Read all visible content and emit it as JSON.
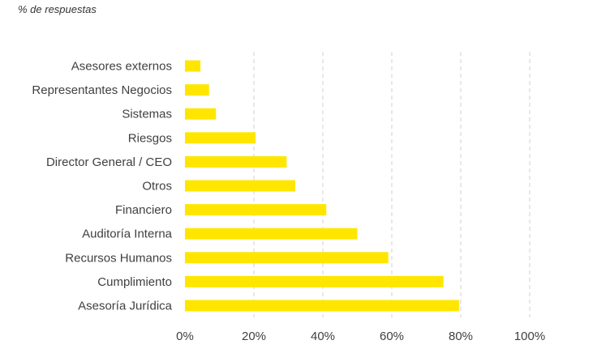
{
  "subtitle": "% de respuestas",
  "colors": {
    "bar": "#FFE600",
    "grid": "#d0d0d0",
    "text": "#404040"
  },
  "chart_data": {
    "type": "bar",
    "orientation": "horizontal",
    "title": "",
    "xlabel": "",
    "ylabel": "",
    "xlim": [
      0,
      100
    ],
    "x_tick_values": [
      0,
      20,
      40,
      60,
      80,
      100
    ],
    "x_tick_labels": [
      "0%",
      "20%",
      "40%",
      "60%",
      "80%",
      "100%"
    ],
    "grid": "vertical dashed",
    "categories": [
      "Asesores externos",
      "Representantes Negocios",
      "Sistemas",
      "Riesgos",
      "Director General / CEO",
      "Otros",
      "Financiero",
      "Auditoría Interna",
      "Recursos Humanos",
      "Cumplimiento",
      "Asesoría Jurídica"
    ],
    "values": [
      4.5,
      7,
      9,
      20.5,
      29.5,
      32,
      41,
      50,
      59,
      75,
      79.5
    ]
  }
}
